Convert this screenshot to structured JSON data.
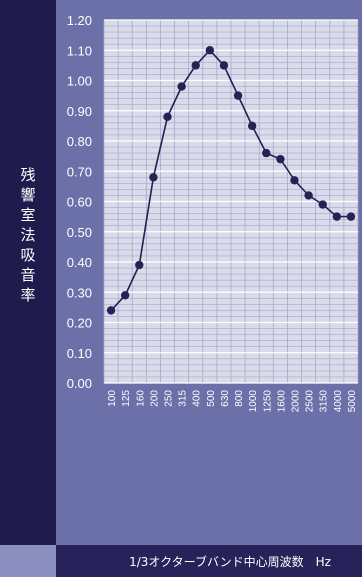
{
  "chart_data": {
    "type": "line",
    "xlabel": "1/3オクターブバンド中心周波数　Hz",
    "ylabel": "残響室法吸音率",
    "ylim": [
      0,
      1.2
    ],
    "y_ticks": [
      "0.00",
      "0.10",
      "0.20",
      "0.30",
      "0.40",
      "0.50",
      "0.60",
      "0.70",
      "0.80",
      "0.90",
      "1.00",
      "1.10",
      "1.20"
    ],
    "categories": [
      "100",
      "125",
      "160",
      "200",
      "250",
      "315",
      "400",
      "500",
      "630",
      "800",
      "1000",
      "1250",
      "1600",
      "2000",
      "2500",
      "3150",
      "4000",
      "5000"
    ],
    "series": [
      {
        "values": [
          0.24,
          0.29,
          0.39,
          0.68,
          0.88,
          0.98,
          1.05,
          1.1,
          1.05,
          0.95,
          0.85,
          0.76,
          0.74,
          0.67,
          0.62,
          0.59,
          0.55,
          0.55
        ]
      }
    ],
    "grid": true,
    "colors": {
      "frame": "#27235a",
      "plot_bg": "#d9dbea",
      "grid": "#a5a9c9",
      "line": "#232050",
      "marker": "#262256"
    }
  }
}
